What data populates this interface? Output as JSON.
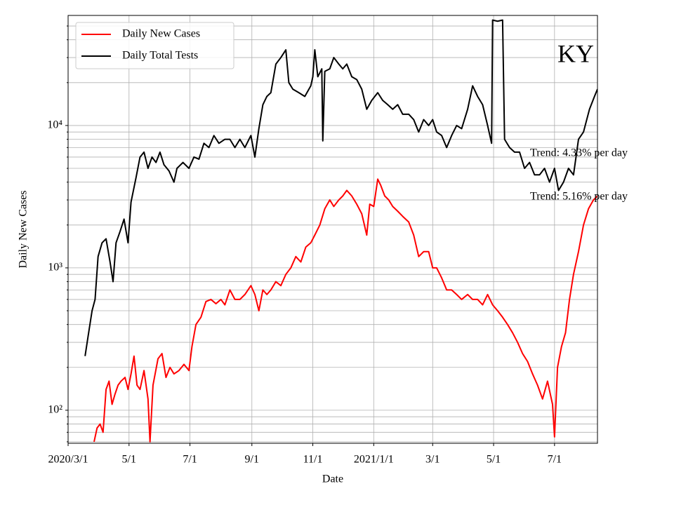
{
  "chart_data": {
    "type": "line",
    "x_label": "Date",
    "y_label": "Daily New Cases",
    "annotation": "KY",
    "trend_labels": [
      "Trend: 4.33% per day",
      "Trend: 5.16% per day"
    ],
    "log_scale": true,
    "grid": true,
    "legend_position": "upper-left",
    "xlim": [
      "2020-03-01",
      "2021-08-13"
    ],
    "xticks": [
      {
        "value": "2020-03-01",
        "label": "2020/3/1"
      },
      {
        "value": "2020-05-01",
        "label": "5/1"
      },
      {
        "value": "2020-07-01",
        "label": "7/1"
      },
      {
        "value": "2020-09-01",
        "label": "9/1"
      },
      {
        "value": "2020-11-01",
        "label": "11/1"
      },
      {
        "value": "2021-01-01",
        "label": "2021/1/1"
      },
      {
        "value": "2021-03-01",
        "label": "3/1"
      },
      {
        "value": "2021-05-01",
        "label": "5/1"
      },
      {
        "value": "2021-07-01",
        "label": "7/1"
      }
    ],
    "ylim": [
      58.6,
      59300
    ],
    "yticks": [
      {
        "value": 100,
        "label": "10²"
      },
      {
        "value": 1000,
        "label": "10³"
      },
      {
        "value": 10000,
        "label": "10⁴"
      }
    ],
    "yminorticks": [
      60,
      70,
      80,
      90,
      200,
      300,
      400,
      500,
      600,
      700,
      800,
      900,
      2000,
      3000,
      4000,
      5000,
      6000,
      7000,
      8000,
      9000,
      20000,
      30000,
      40000,
      50000
    ],
    "series": [
      {
        "name": "Daily New Cases",
        "color": "#ff0000",
        "x": [
          "2020-03-27",
          "2020-03-30",
          "2020-04-02",
          "2020-04-05",
          "2020-04-08",
          "2020-04-11",
          "2020-04-14",
          "2020-04-17",
          "2020-04-20",
          "2020-04-23",
          "2020-04-27",
          "2020-04-30",
          "2020-05-03",
          "2020-05-06",
          "2020-05-09",
          "2020-05-12",
          "2020-05-16",
          "2020-05-20",
          "2020-05-22",
          "2020-05-25",
          "2020-05-30",
          "2020-06-03",
          "2020-06-07",
          "2020-06-11",
          "2020-06-15",
          "2020-06-20",
          "2020-06-25",
          "2020-06-30",
          "2020-07-03",
          "2020-07-07",
          "2020-07-12",
          "2020-07-17",
          "2020-07-22",
          "2020-07-27",
          "2020-08-01",
          "2020-08-05",
          "2020-08-10",
          "2020-08-15",
          "2020-08-20",
          "2020-08-25",
          "2020-08-31",
          "2020-09-04",
          "2020-09-08",
          "2020-09-12",
          "2020-09-16",
          "2020-09-20",
          "2020-09-25",
          "2020-09-30",
          "2020-10-05",
          "2020-10-10",
          "2020-10-15",
          "2020-10-20",
          "2020-10-25",
          "2020-10-30",
          "2020-11-03",
          "2020-11-08",
          "2020-11-13",
          "2020-11-18",
          "2020-11-22",
          "2020-11-27",
          "2020-12-01",
          "2020-12-05",
          "2020-12-10",
          "2020-12-15",
          "2020-12-20",
          "2020-12-25",
          "2020-12-28",
          "2021-01-01",
          "2021-01-05",
          "2021-01-08",
          "2021-01-12",
          "2021-01-16",
          "2021-01-20",
          "2021-01-25",
          "2021-01-30",
          "2021-02-05",
          "2021-02-10",
          "2021-02-15",
          "2021-02-20",
          "2021-02-25",
          "2021-03-01",
          "2021-03-05",
          "2021-03-10",
          "2021-03-15",
          "2021-03-20",
          "2021-03-25",
          "2021-03-30",
          "2021-04-05",
          "2021-04-10",
          "2021-04-15",
          "2021-04-20",
          "2021-04-25",
          "2021-04-30",
          "2021-05-05",
          "2021-05-10",
          "2021-05-15",
          "2021-05-20",
          "2021-05-25",
          "2021-05-30",
          "2021-06-04",
          "2021-06-09",
          "2021-06-14",
          "2021-06-19",
          "2021-06-24",
          "2021-06-29",
          "2021-07-01",
          "2021-07-04",
          "2021-07-08",
          "2021-07-12",
          "2021-07-16",
          "2021-07-20",
          "2021-07-25",
          "2021-07-30",
          "2021-08-04",
          "2021-08-09",
          "2021-08-13"
        ],
        "values": [
          60,
          75,
          80,
          70,
          140,
          160,
          110,
          130,
          150,
          160,
          170,
          140,
          180,
          240,
          150,
          140,
          190,
          120,
          60,
          150,
          230,
          250,
          170,
          200,
          180,
          190,
          210,
          190,
          280,
          400,
          450,
          580,
          600,
          560,
          600,
          550,
          700,
          600,
          600,
          650,
          750,
          650,
          500,
          700,
          650,
          700,
          800,
          750,
          900,
          1000,
          1200,
          1100,
          1400,
          1500,
          1700,
          2000,
          2600,
          3000,
          2700,
          3000,
          3200,
          3500,
          3200,
          2800,
          2400,
          1700,
          2800,
          2700,
          4200,
          3800,
          3200,
          3000,
          2700,
          2500,
          2300,
          2100,
          1700,
          1200,
          1300,
          1300,
          1000,
          1000,
          850,
          700,
          700,
          650,
          600,
          650,
          600,
          600,
          550,
          650,
          550,
          500,
          450,
          400,
          350,
          300,
          250,
          220,
          180,
          150,
          120,
          160,
          110,
          65,
          200,
          280,
          350,
          600,
          900,
          1300,
          2000,
          2600,
          3000,
          3200
        ]
      },
      {
        "name": "Daily Total Tests",
        "color": "#000000",
        "x": [
          "2020-03-18",
          "2020-03-21",
          "2020-03-25",
          "2020-03-28",
          "2020-03-31",
          "2020-04-04",
          "2020-04-08",
          "2020-04-12",
          "2020-04-15",
          "2020-04-18",
          "2020-04-22",
          "2020-04-26",
          "2020-04-30",
          "2020-05-03",
          "2020-05-08",
          "2020-05-12",
          "2020-05-16",
          "2020-05-20",
          "2020-05-24",
          "2020-05-28",
          "2020-06-01",
          "2020-06-05",
          "2020-06-10",
          "2020-06-15",
          "2020-06-18",
          "2020-06-24",
          "2020-06-30",
          "2020-07-05",
          "2020-07-10",
          "2020-07-15",
          "2020-07-20",
          "2020-07-25",
          "2020-07-30",
          "2020-08-05",
          "2020-08-10",
          "2020-08-15",
          "2020-08-20",
          "2020-08-25",
          "2020-08-31",
          "2020-09-04",
          "2020-09-08",
          "2020-09-12",
          "2020-09-16",
          "2020-09-20",
          "2020-09-25",
          "2020-09-30",
          "2020-10-05",
          "2020-10-08",
          "2020-10-12",
          "2020-10-18",
          "2020-10-24",
          "2020-10-30",
          "2020-11-01",
          "2020-11-03",
          "2020-11-06",
          "2020-11-10",
          "2020-11-11",
          "2020-11-13",
          "2020-11-18",
          "2020-11-22",
          "2020-11-27",
          "2020-12-01",
          "2020-12-05",
          "2020-12-10",
          "2020-12-15",
          "2020-12-20",
          "2020-12-25",
          "2020-12-30",
          "2021-01-05",
          "2021-01-10",
          "2021-01-15",
          "2021-01-20",
          "2021-01-25",
          "2021-01-30",
          "2021-02-05",
          "2021-02-10",
          "2021-02-15",
          "2021-02-20",
          "2021-02-25",
          "2021-03-01",
          "2021-03-05",
          "2021-03-10",
          "2021-03-15",
          "2021-03-20",
          "2021-03-25",
          "2021-03-30",
          "2021-04-05",
          "2021-04-10",
          "2021-04-15",
          "2021-04-20",
          "2021-04-25",
          "2021-04-29",
          "2021-04-30",
          "2021-05-05",
          "2021-05-10",
          "2021-05-12",
          "2021-05-17",
          "2021-05-22",
          "2021-05-27",
          "2021-06-01",
          "2021-06-06",
          "2021-06-11",
          "2021-06-16",
          "2021-06-21",
          "2021-06-26",
          "2021-07-01",
          "2021-07-05",
          "2021-07-10",
          "2021-07-15",
          "2021-07-20",
          "2021-07-25",
          "2021-07-30",
          "2021-08-05",
          "2021-08-10",
          "2021-08-13"
        ],
        "values": [
          240,
          330,
          500,
          600,
          1200,
          1500,
          1600,
          1100,
          800,
          1500,
          1800,
          2200,
          1500,
          2900,
          4300,
          6000,
          6500,
          5000,
          6000,
          5500,
          6500,
          5300,
          4800,
          4000,
          5000,
          5500,
          5000,
          6000,
          5800,
          7500,
          7000,
          8500,
          7500,
          8000,
          8000,
          7000,
          8000,
          7000,
          8500,
          6000,
          9500,
          14000,
          16000,
          17000,
          27000,
          30000,
          34000,
          20000,
          18000,
          17000,
          16000,
          19000,
          22000,
          34000,
          22000,
          25000,
          7800,
          24000,
          25000,
          30000,
          27000,
          25000,
          27000,
          22000,
          21000,
          18000,
          13000,
          15000,
          17000,
          15000,
          14000,
          13000,
          14000,
          12000,
          12000,
          11000,
          9000,
          11000,
          10000,
          11000,
          9000,
          8500,
          7000,
          8500,
          10000,
          9500,
          13000,
          19000,
          16000,
          14000,
          10000,
          7500,
          55000,
          54000,
          55000,
          8000,
          7000,
          6500,
          6500,
          5000,
          5500,
          4500,
          4500,
          5000,
          4000,
          5000,
          3500,
          4000,
          5000,
          4500,
          8000,
          9000,
          13000,
          16000,
          18000
        ]
      }
    ]
  }
}
